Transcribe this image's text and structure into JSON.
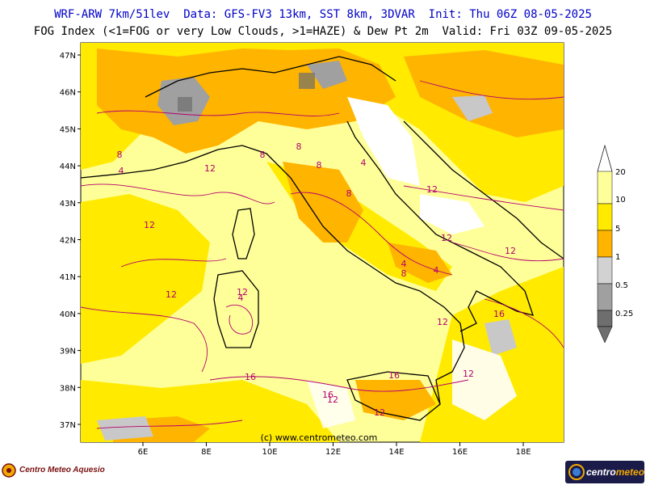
{
  "header": {
    "line1": "WRF-ARW 7km/51lev  Data: GFS-FV3 13km, SST 8km, 3DVAR  Init: Thu 06Z 08-05-2025",
    "line2": "FOG Index (<1=FOG or very Low Clouds, >1=HAZE) & Dew Pt 2m  Valid: Fri 03Z 09-05-2025"
  },
  "map": {
    "lat_labels": [
      "47N",
      "46N",
      "45N",
      "44N",
      "43N",
      "42N",
      "41N",
      "40N",
      "39N",
      "38N",
      "37N"
    ],
    "lon_labels": [
      "6E",
      "8E",
      "10E",
      "12E",
      "14E",
      "16E",
      "18E"
    ],
    "copyright": "(c) www.centrometeo.com",
    "contour_labels": [
      "4",
      "8",
      "12",
      "8",
      "12",
      "12",
      "12",
      "4",
      "8",
      "8",
      "12",
      "12",
      "4",
      "8",
      "12",
      "12",
      "16",
      "16",
      "16",
      "16",
      "12",
      "12",
      "12",
      "4",
      "4",
      "8"
    ]
  },
  "legend": {
    "labels": [
      "20",
      "10",
      "5",
      "1",
      "0.5",
      "0.25"
    ],
    "colors": [
      "#ffff99",
      "#ffea00",
      "#ffb400",
      "#d2d2d2",
      "#a0a0a0",
      "#6e6e6e"
    ]
  },
  "logos": {
    "left_text": "Centro Meteo Aquesio",
    "right_text_main": "centro",
    "right_text_accent": "meteo"
  }
}
